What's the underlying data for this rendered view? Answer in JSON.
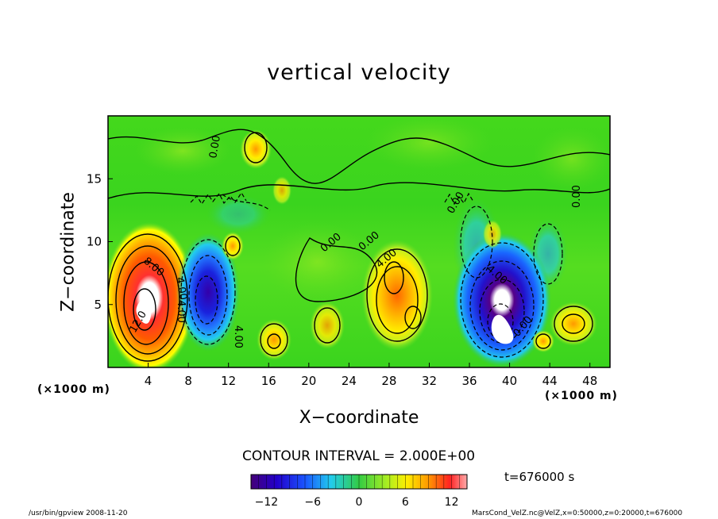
{
  "chart_data": {
    "type": "heatmap",
    "title": "vertical velocity",
    "xlabel": "X−coordinate",
    "ylabel": "Z−coordinate",
    "x_unit_left": "(×1000 m)",
    "x_unit_right": "(×1000 m)",
    "xlim": [
      0,
      50
    ],
    "ylim": [
      0,
      20
    ],
    "x_ticks": [
      4,
      8,
      12,
      16,
      20,
      24,
      28,
      32,
      36,
      40,
      44,
      48
    ],
    "y_ticks": [
      5,
      10,
      15
    ],
    "contour_interval": "CONTOUR INTERVAL = 2.000E+00",
    "colorbar_ticks": [
      -12,
      -6,
      0,
      6,
      12
    ],
    "colorbar_range": [
      -14,
      14
    ],
    "contour_labels": [
      "0.00",
      "0.00",
      "0.00",
      "0.00",
      "0.00",
      "0.00",
      "8.00",
      "4.00",
      "12.0",
      "4.00",
      "4.00",
      "4.00",
      "4.00"
    ],
    "features": [
      {
        "x": 3.5,
        "z": 5.5,
        "value": 14,
        "note": "updraft"
      },
      {
        "x": 10,
        "z": 6,
        "value": -10,
        "note": "downdraft"
      },
      {
        "x": 39.5,
        "z": 3.5,
        "value": -14,
        "note": "downdraft"
      },
      {
        "x": 29.5,
        "z": 6,
        "value": 8,
        "note": "updraft"
      },
      {
        "x": 46,
        "z": 3.5,
        "value": 6,
        "note": "updraft"
      },
      {
        "x": 16.5,
        "z": 2,
        "value": 6,
        "note": "updraft"
      }
    ],
    "grid": false,
    "time": "t=676000 s"
  },
  "footer": {
    "left": "/usr/bin/gpview  2008-11-20",
    "right": "MarsCond_VelZ.nc@VelZ,x=0:50000,z=0:20000,t=676000"
  },
  "colors": {
    "background_field": "#33cc22",
    "positive_max": "#ff2222",
    "negative_max": "#2200aa"
  }
}
